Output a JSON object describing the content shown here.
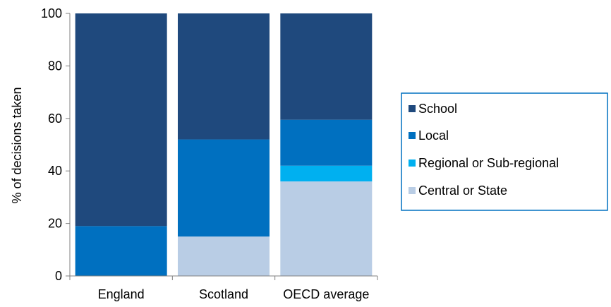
{
  "chart_data": {
    "type": "bar",
    "stacked": true,
    "categories": [
      "England",
      "Scotland",
      "OECD average"
    ],
    "series": [
      {
        "name": "Central or State",
        "color": "#b9cde5",
        "values": [
          0,
          15,
          36
        ]
      },
      {
        "name": "Regional or Sub-regional",
        "color": "#00b0f0",
        "values": [
          0,
          0,
          6
        ]
      },
      {
        "name": "Local",
        "color": "#0070c0",
        "values": [
          19,
          37,
          17.5
        ]
      },
      {
        "name": "School",
        "color": "#1f497d",
        "values": [
          81,
          48,
          40.5
        ]
      }
    ],
    "legend_order": [
      "School",
      "Local",
      "Regional or Sub-regional",
      "Central or State"
    ],
    "title": "",
    "xlabel": "",
    "ylabel": "% of decisions taken",
    "ylim": [
      0,
      100
    ],
    "yticks": [
      0,
      20,
      40,
      60,
      80,
      100
    ],
    "grid": false,
    "legend_position": "right"
  }
}
